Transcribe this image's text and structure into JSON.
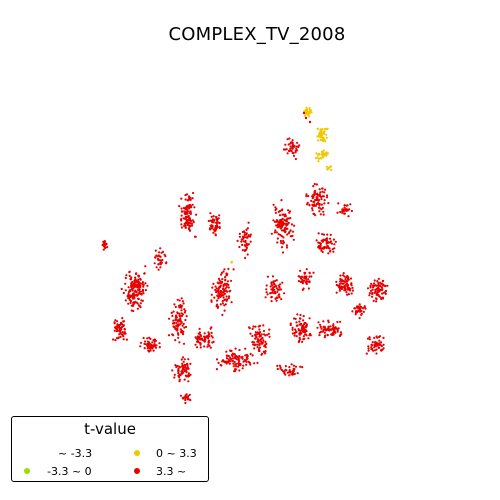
{
  "map": {
    "title": "COMPLEX_TV_2008"
  },
  "legend": {
    "title": "t-value",
    "entries": [
      {
        "label": "~ -3.3",
        "color": "#ffffff"
      },
      {
        "label": "0 ~ 3.3",
        "color": "#f0c800"
      },
      {
        "label": "-3.3 ~ 0",
        "color": "#9ade00"
      },
      {
        "label": "3.3 ~",
        "color": "#e60000"
      }
    ]
  },
  "colors": {
    "high_positive": "#e60000",
    "low_positive": "#f0c800",
    "low_negative": "#9ade00",
    "high_negative": "#ffffff"
  }
}
